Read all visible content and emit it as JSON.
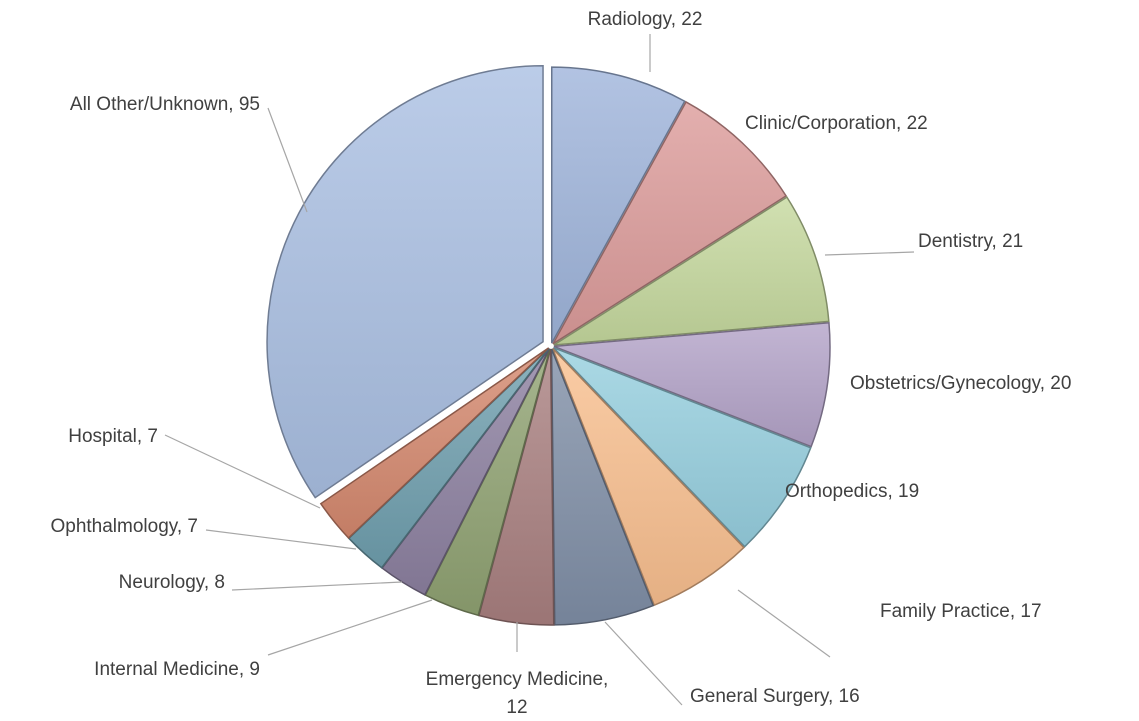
{
  "chart_data": {
    "type": "pie",
    "categories": [
      "Radiology",
      "Clinic/Corporation",
      "Dentistry",
      "Obstetrics/Gynecology",
      "Orthopedics",
      "Family Practice",
      "General Surgery",
      "Emergency Medicine",
      "Internal Medicine",
      "Neurology",
      "Ophthalmology",
      "Hospital",
      "All Other/Unknown"
    ],
    "values": [
      22,
      22,
      21,
      20,
      19,
      17,
      16,
      12,
      9,
      8,
      7,
      7,
      95
    ],
    "value_labels": [
      "Radiology, 22",
      "Clinic/Corporation, 22",
      "Dentistry, 21",
      "Obstetrics/Gynecology, 20",
      "Orthopedics, 19",
      "Family Practice, 17",
      "General Surgery, 16",
      "Emergency Medicine, 12",
      "Internal Medicine, 9",
      "Neurology, 8",
      "Ophthalmology, 7",
      "Hospital, 7",
      "All Other/Unknown, 95"
    ],
    "colors": [
      "#9fb4db",
      "#dc9b9a",
      "#c5d89e",
      "#b3a3c8",
      "#96cfdf",
      "#f9bf8f",
      "#7f8ea6",
      "#a97f7f",
      "#90a272",
      "#8c80a0",
      "#6f9fae",
      "#d4886e",
      "#aabfe2"
    ]
  }
}
